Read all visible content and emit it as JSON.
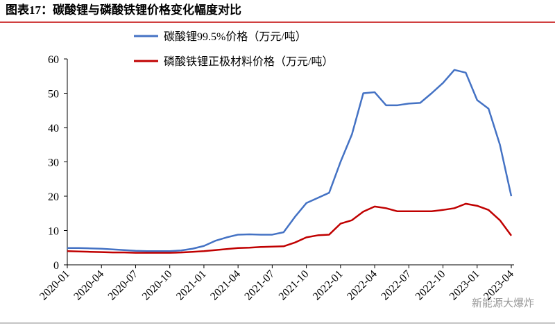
{
  "chart_data": {
    "type": "line",
    "title": "图表17：碳酸锂与磷酸铁锂价格变化幅度对比",
    "watermark": "新能源大爆炸",
    "x": [
      "2020-01",
      "2020-02",
      "2020-03",
      "2020-04",
      "2020-05",
      "2020-06",
      "2020-07",
      "2020-08",
      "2020-09",
      "2020-10",
      "2020-11",
      "2020-12",
      "2021-01",
      "2021-02",
      "2021-03",
      "2021-04",
      "2021-05",
      "2021-06",
      "2021-07",
      "2021-08",
      "2021-09",
      "2021-10",
      "2021-11",
      "2021-12",
      "2022-01",
      "2022-02",
      "2022-03",
      "2022-04",
      "2022-05",
      "2022-06",
      "2022-07",
      "2022-08",
      "2022-09",
      "2022-10",
      "2022-11",
      "2022-12",
      "2023-01",
      "2023-02",
      "2023-03",
      "2023-04"
    ],
    "xticks": [
      "2020-01",
      "2020-04",
      "2020-07",
      "2020-10",
      "2021-01",
      "2021-04",
      "2021-07",
      "2021-10",
      "2022-01",
      "2022-04",
      "2022-07",
      "2022-10",
      "2023-01",
      "2023-04"
    ],
    "series": [
      {
        "name": "碳酸锂99.5%价格（万元/吨）",
        "color": "#4472c4",
        "values": [
          4.9,
          4.9,
          4.8,
          4.7,
          4.5,
          4.3,
          4.1,
          4.0,
          4.0,
          4.0,
          4.2,
          4.7,
          5.5,
          7.0,
          8.0,
          8.8,
          8.9,
          8.8,
          8.8,
          9.5,
          14.0,
          18.0,
          19.5,
          21.0,
          30.0,
          38.0,
          50.0,
          50.3,
          46.5,
          46.5,
          47.0,
          47.2,
          50.0,
          53.0,
          56.8,
          56.0,
          48.0,
          45.5,
          35.0,
          20.0
        ]
      },
      {
        "name": "磷酸铁锂正极材料价格（万元/吨）",
        "color": "#c00000",
        "values": [
          4.0,
          3.9,
          3.8,
          3.7,
          3.6,
          3.6,
          3.5,
          3.5,
          3.5,
          3.5,
          3.6,
          3.8,
          4.0,
          4.3,
          4.6,
          4.9,
          5.0,
          5.2,
          5.3,
          5.4,
          6.5,
          8.0,
          8.6,
          8.8,
          12.0,
          13.0,
          15.5,
          17.0,
          16.5,
          15.6,
          15.6,
          15.6,
          15.6,
          16.0,
          16.5,
          17.8,
          17.2,
          16.0,
          13.0,
          8.5
        ]
      }
    ],
    "ylim": [
      0,
      60
    ],
    "yticks": [
      0,
      10,
      20,
      30,
      40,
      50,
      60
    ]
  }
}
